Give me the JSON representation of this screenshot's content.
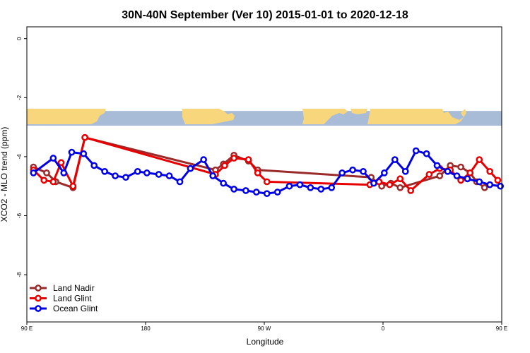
{
  "chart_data": {
    "type": "line",
    "title": "30N-40N September (Ver 10)   2015-01-01 to 2020-12-18",
    "xlabel": "Longitude",
    "ylabel": "XCO2 - MLO trend (ppm)",
    "xlim": [
      90,
      450
    ],
    "ylim": [
      -9.6,
      0.4
    ],
    "x_ticks": [
      {
        "value": 90,
        "label": "90 E"
      },
      {
        "value": 180,
        "label": "180"
      },
      {
        "value": 270,
        "label": "90 W"
      },
      {
        "value": 360,
        "label": "0"
      },
      {
        "value": 450,
        "label": "90 E"
      }
    ],
    "y_ticks": [
      {
        "value": 0,
        "label": "0"
      },
      {
        "value": -2,
        "label": "-2"
      },
      {
        "value": -4,
        "label": "-4"
      },
      {
        "value": -6,
        "label": "-6"
      },
      {
        "value": -8,
        "label": "-8"
      }
    ],
    "legend_position": "bottom-left",
    "map_strip": {
      "top_value": -2.45,
      "bottom_value": -2.95,
      "ocean_color": "#a8bcd8",
      "land_color": "#f8d77c"
    },
    "series": [
      {
        "name": "Land Nadir",
        "color": "#9b2b2b",
        "x": [
          95,
          105,
          112,
          125,
          134,
          233,
          239,
          247,
          258,
          265,
          351,
          359,
          366,
          373,
          403,
          411,
          419,
          426,
          431,
          437
        ],
        "y": [
          -4.35,
          -4.55,
          -4.85,
          -5.05,
          -3.35,
          -4.45,
          -4.25,
          -3.95,
          -4.15,
          -4.45,
          -4.7,
          -5.0,
          -4.9,
          -5.05,
          -4.65,
          -4.3,
          -4.35,
          -4.55,
          -4.85,
          -5.05
        ]
      },
      {
        "name": "Land Glint",
        "color": "#e80000",
        "x": [
          95,
          103,
          110,
          116,
          125,
          134,
          233,
          240,
          247,
          258,
          265,
          272,
          350,
          357,
          365,
          373,
          381,
          395,
          403,
          411,
          419,
          426,
          433,
          441,
          447
        ],
        "y": [
          -4.45,
          -4.8,
          -4.85,
          -4.2,
          -5.0,
          -3.35,
          -4.6,
          -4.3,
          -4.05,
          -4.1,
          -4.55,
          -4.85,
          -4.95,
          -4.85,
          -4.95,
          -4.75,
          -5.15,
          -4.6,
          -4.4,
          -4.45,
          -4.8,
          -4.55,
          -4.1,
          -4.5,
          -4.8
        ]
      },
      {
        "name": "Ocean Glint",
        "color": "#0000e6",
        "x": [
          95,
          110,
          118,
          124,
          133,
          141,
          149,
          157,
          165,
          174,
          181,
          190,
          198,
          206,
          214,
          224,
          231,
          239,
          247,
          256,
          264,
          272,
          280,
          289,
          297,
          305,
          313,
          321,
          329,
          337,
          345,
          353,
          361,
          369,
          377,
          385,
          393,
          401,
          409,
          416,
          424,
          433,
          441,
          449
        ],
        "y": [
          -4.55,
          -4.05,
          -4.55,
          -3.85,
          -3.9,
          -4.3,
          -4.5,
          -4.65,
          -4.7,
          -4.5,
          -4.55,
          -4.6,
          -4.65,
          -4.85,
          -4.4,
          -4.1,
          -4.65,
          -4.9,
          -5.1,
          -5.15,
          -5.2,
          -5.25,
          -5.2,
          -5.0,
          -4.95,
          -5.05,
          -5.1,
          -5.05,
          -4.55,
          -4.45,
          -4.5,
          -4.9,
          -4.55,
          -4.1,
          -4.5,
          -3.8,
          -3.9,
          -4.3,
          -4.5,
          -4.65,
          -4.75,
          -4.85,
          -4.95,
          -5.0
        ]
      }
    ]
  }
}
